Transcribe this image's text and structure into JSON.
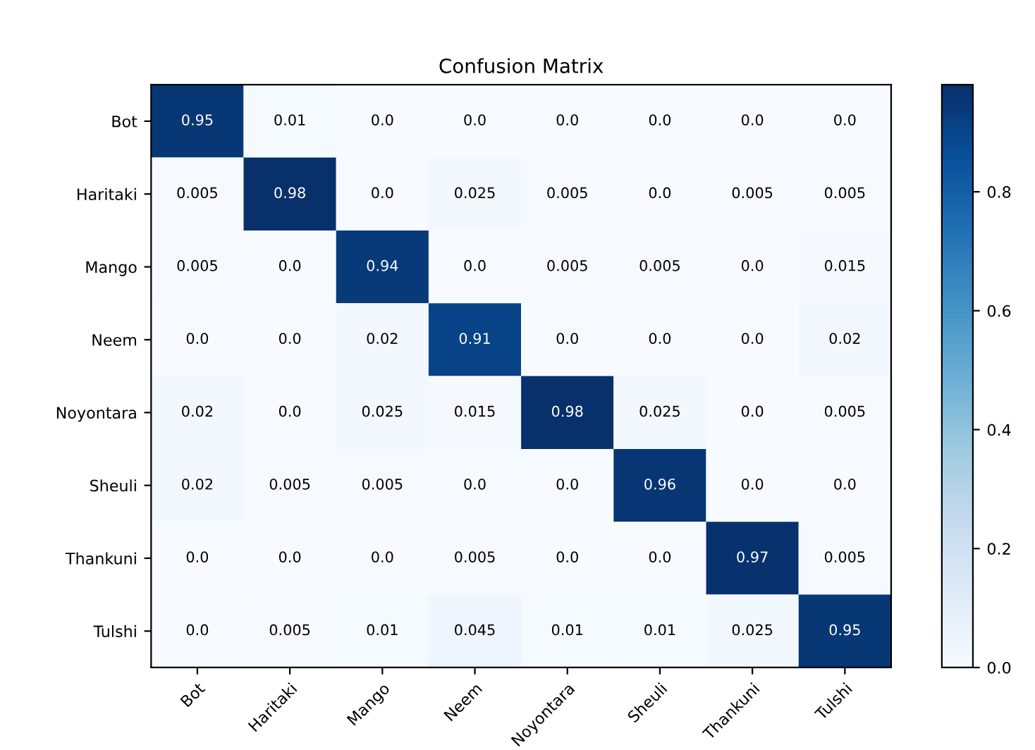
{
  "chart_data": {
    "type": "heatmap",
    "title": "Confusion Matrix",
    "categories": [
      "Bot",
      "Haritaki",
      "Mango",
      "Neem",
      "Noyontara",
      "Sheuli",
      "Thankuni",
      "Tulshi"
    ],
    "y_categories": [
      "Bot",
      "Haritaki",
      "Mango",
      "Neem",
      "Noyontara",
      "Sheuli",
      "Thankuni",
      "Tulshi"
    ],
    "cells": [
      [
        0.95,
        0.01,
        0,
        0,
        0,
        0,
        0,
        0
      ],
      [
        0.005,
        0.98,
        0,
        0.025,
        0.005,
        0,
        0.005,
        0.005
      ],
      [
        0.005,
        0,
        0.94,
        0,
        0.005,
        0.005,
        0,
        0.015
      ],
      [
        0,
        0,
        0.02,
        0.91,
        0,
        0,
        0,
        0.02
      ],
      [
        0.02,
        0,
        0.025,
        0.015,
        0.98,
        0.025,
        0,
        0.005
      ],
      [
        0.02,
        0.005,
        0.005,
        0,
        0,
        0.96,
        0,
        0
      ],
      [
        0,
        0,
        0,
        0.005,
        0,
        0,
        0.97,
        0.005
      ],
      [
        0,
        0.005,
        0.01,
        0.045,
        0.01,
        0.01,
        0.025,
        0.95
      ]
    ],
    "cell_labels": [
      [
        "0.95",
        "0.01",
        "0.0",
        "0.0",
        "0.0",
        "0.0",
        "0.0",
        "0.0"
      ],
      [
        "0.005",
        "0.98",
        "0.0",
        "0.025",
        "0.005",
        "0.0",
        "0.005",
        "0.005"
      ],
      [
        "0.005",
        "0.0",
        "0.94",
        "0.0",
        "0.005",
        "0.005",
        "0.0",
        "0.015"
      ],
      [
        "0.0",
        "0.0",
        "0.02",
        "0.91",
        "0.0",
        "0.0",
        "0.0",
        "0.02"
      ],
      [
        "0.02",
        "0.0",
        "0.025",
        "0.015",
        "0.98",
        "0.025",
        "0.0",
        "0.005"
      ],
      [
        "0.02",
        "0.005",
        "0.005",
        "0.0",
        "0.0",
        "0.96",
        "0.0",
        "0.0"
      ],
      [
        "0.0",
        "0.0",
        "0.0",
        "0.005",
        "0.0",
        "0.0",
        "0.97",
        "0.005"
      ],
      [
        "0.0",
        "0.005",
        "0.01",
        "0.045",
        "0.01",
        "0.01",
        "0.025",
        "0.95"
      ]
    ],
    "clim": [
      0,
      0.98
    ],
    "cticks": [
      {
        "value": 0,
        "label": "0.0"
      },
      {
        "value": 0.2,
        "label": "0.2"
      },
      {
        "value": 0.4,
        "label": "0.4"
      },
      {
        "value": 0.6,
        "label": "0.6"
      },
      {
        "value": 0.8,
        "label": "0.8"
      }
    ]
  }
}
